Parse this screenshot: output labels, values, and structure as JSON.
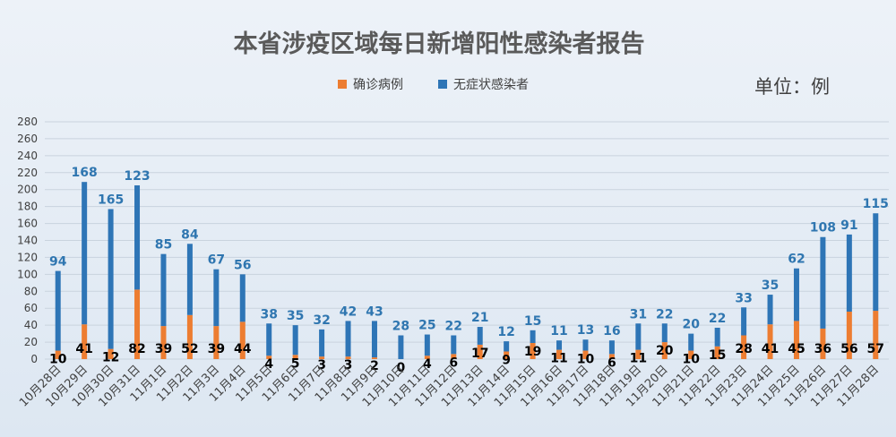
{
  "chart_data": {
    "type": "bar",
    "stacked": true,
    "title": "本省涉疫区域每日新增阳性感染者报告",
    "unit": "单位：例",
    "categories": [
      "10月28日",
      "10月29日",
      "10月30日",
      "10月31日",
      "11月1日",
      "11月2日",
      "11月3日",
      "11月4日",
      "11月5日",
      "11月6日",
      "11月7日",
      "11月8日",
      "11月9日",
      "11月10日",
      "11月11日",
      "11月12日",
      "11月13日",
      "11月14日",
      "11月15日",
      "11月16日",
      "11月17日",
      "11月18日",
      "11月19日",
      "11月20日",
      "11月21日",
      "11月22日",
      "11月23日",
      "11月24日",
      "11月25日",
      "11月26日",
      "11月27日",
      "11月28日"
    ],
    "series": [
      {
        "name": "确诊病例",
        "color": "#ed7d31",
        "values": [
          10,
          41,
          12,
          82,
          39,
          52,
          39,
          44,
          4,
          5,
          3,
          3,
          2,
          0,
          4,
          6,
          17,
          9,
          19,
          11,
          10,
          6,
          11,
          20,
          10,
          15,
          28,
          41,
          45,
          36,
          56,
          57
        ]
      },
      {
        "name": "无症状感染者",
        "color": "#2e75b6",
        "values": [
          94,
          168,
          165,
          123,
          85,
          84,
          67,
          56,
          38,
          35,
          32,
          42,
          43,
          28,
          25,
          22,
          21,
          12,
          15,
          11,
          13,
          16,
          31,
          22,
          20,
          22,
          33,
          35,
          62,
          108,
          91,
          115
        ]
      }
    ],
    "ylim": [
      0,
      280
    ],
    "yticks": [
      0,
      20,
      40,
      60,
      80,
      100,
      120,
      140,
      160,
      180,
      200,
      220,
      240,
      260,
      280
    ],
    "grid": true,
    "legend_position": "top-center"
  }
}
